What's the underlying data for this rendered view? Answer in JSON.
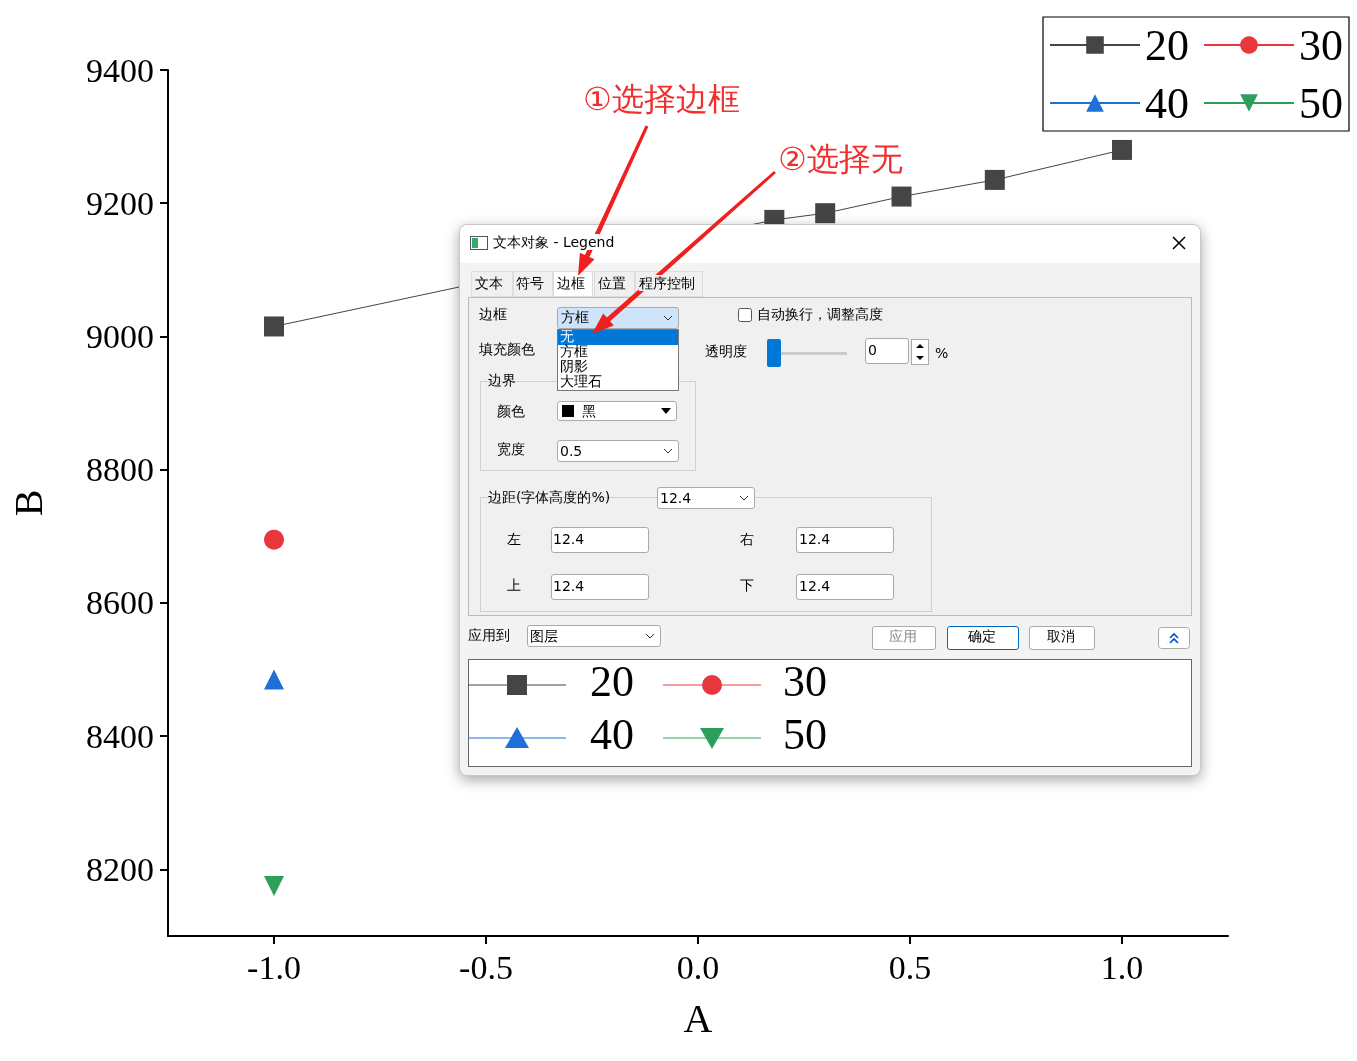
{
  "chart_data": [
    {
      "type": "line",
      "xlabel": "A",
      "ylabel": "B",
      "xlim": [
        -1.25,
        1.25
      ],
      "xticks": [
        {
          "value": -1,
          "label": "-1.0"
        },
        {
          "value": -0.5,
          "label": "-0.5"
        },
        {
          "value": 0,
          "label": "0.0"
        },
        {
          "value": 0.5,
          "label": "0.5"
        },
        {
          "value": 1,
          "label": "1.0"
        }
      ],
      "ylim": [
        8100,
        9400
      ],
      "yticks": [
        8200,
        8400,
        8600,
        8800,
        9000,
        9200,
        9400
      ],
      "grid": false,
      "legend": "top right",
      "line_style": "solid",
      "annotations": [
        "①选择边框",
        "②选择无"
      ],
      "series": [
        {
          "name": "20",
          "color": "#454545",
          "marker": "square",
          "x": [
            -1.0,
            0.18,
            0.3,
            0.48,
            0.7,
            1.0
          ],
          "values": [
            9015,
            9175,
            9185,
            9210,
            9235,
            9280
          ]
        },
        {
          "name": "30",
          "color": "#e8383d",
          "marker": "circle",
          "x": [
            -1.0
          ],
          "values": [
            8695
          ]
        },
        {
          "name": "40",
          "color": "#1e6fd9",
          "marker": "triangle",
          "x": [
            -1.0
          ],
          "values": [
            8485
          ]
        },
        {
          "name": "50",
          "color": "#2ca05a",
          "marker": "triangle-down",
          "x": [
            -1.0
          ],
          "values": [
            8175
          ]
        }
      ]
    },
    {
      "type": "other",
      "title": "文本对象 - Legend",
      "annotations": [
        "文本",
        "符号",
        "边框",
        "位置",
        "程序控制",
        "边框",
        "方框",
        "无",
        "方框",
        "阴影",
        "大理石",
        "自动换行，调整高度",
        "填充颜色",
        "透明度",
        "0",
        "%",
        "边界",
        "颜色",
        "黑",
        "宽度",
        "0.5",
        "边距(字体高度的%)",
        "12.4",
        "左",
        "12.4",
        "右",
        "12.4",
        "上",
        "12.4",
        "下",
        "12.4",
        "应用到",
        "图层",
        "应用",
        "确定",
        "取消",
        "20",
        "30",
        "40",
        "50"
      ]
    }
  ]
}
